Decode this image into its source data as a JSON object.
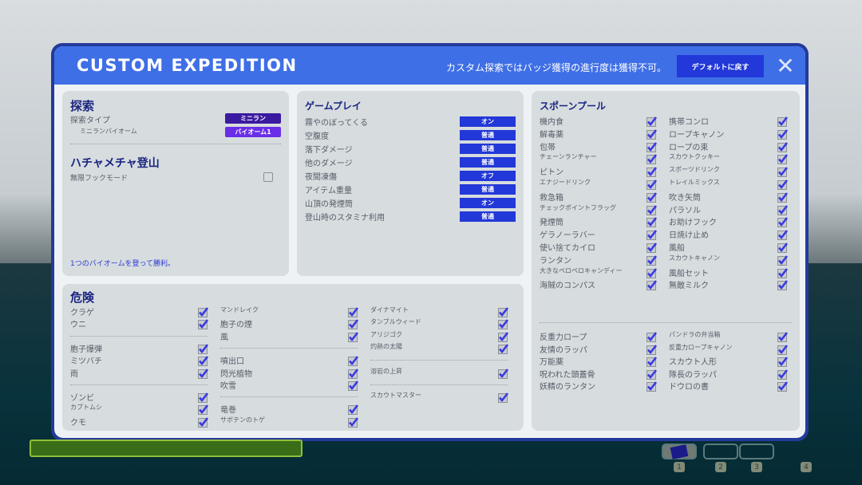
{
  "header": {
    "title": "CUSTOM EXPEDITION",
    "notice": "カスタム探索ではバッジ獲得の進行度は獲得不可。",
    "default_button": "デフォルトに戻す",
    "close_icon": "close-icon"
  },
  "colors": {
    "header": "#3f6fe6",
    "button": "#2238d8",
    "pill_dark": "#3a1aa0",
    "pill_light": "#6a2ee8"
  },
  "exploration": {
    "title": "探索",
    "type_label": "探索タイプ",
    "type_value": "ミニラン",
    "biome_label": "ミニランバイオーム",
    "biome_value": "バイオーム1",
    "chaos_title": "ハチャメチャ登山",
    "infinite_hook_label": "無限フックモード",
    "infinite_hook_checked": false,
    "win_text": "1つのバイオームを登って勝利。"
  },
  "gameplay": {
    "title": "ゲームプレイ",
    "rows": [
      {
        "label": "霧やのぼってくる",
        "value": "オン"
      },
      {
        "label": "空腹度",
        "value": "普通"
      },
      {
        "label": "落下ダメージ",
        "value": "普通"
      },
      {
        "label": "他のダメージ",
        "value": "普通"
      },
      {
        "label": "夜間凍傷",
        "value": "オフ"
      },
      {
        "label": "アイテム重量",
        "value": "普通"
      },
      {
        "label": "山頂の発煙筒",
        "value": "オン"
      },
      {
        "label": "登山時のスタミナ利用",
        "value": "普通"
      }
    ]
  },
  "spawn_pool": {
    "title": "スポーンプール",
    "col1": [
      "機内食",
      "解毒薬",
      "包帯",
      "チェーンランチャー",
      "ピトン",
      "エナジードリンク",
      "救急箱",
      "チェックポイントフラッグ",
      "発煙筒",
      "ゲラノーラバー",
      "使い捨てカイロ",
      "ランタン",
      "大きなペロペロキャンディー",
      "海賊のコンパス"
    ],
    "col2": [
      "携帯コンロ",
      "ロープキャノン",
      "ロープの束",
      "スカウトクッキー",
      "スポーツドリンク",
      "トレイルミックス",
      "吹き矢筒",
      "パラソル",
      "お助けフック",
      "日焼け止め",
      "風船",
      "スカウトキャノン",
      "風船セット",
      "無敵ミルク"
    ],
    "col3": [
      "反重力ロープ",
      "友情のラッパ",
      "万能薬",
      "呪われた頭蓋骨",
      "妖精のランタン"
    ],
    "col4": [
      "パンドラの弁当箱",
      "反重力ロープキャノン",
      "スカウト人形",
      "隊長のラッパ",
      "ドウロの書"
    ]
  },
  "hazards": {
    "title": "危険",
    "columns": [
      [
        "クラゲ",
        "ウニ",
        "-",
        "胞子爆弾",
        "ミツバチ",
        "雨",
        "-",
        "ゾンビ",
        "カブトムシ",
        "クモ"
      ],
      [
        "マンドレイク",
        "胞子の煙",
        "風",
        "-",
        "噴出口",
        "閃光植物",
        "吹雪",
        "-",
        "竜巻",
        "サボテンのトゲ"
      ],
      [
        "ダイナマイト",
        "タンブルウィード",
        "アリジゴク",
        "灼熱の太陽",
        "-",
        "溶岩の上昇",
        "-",
        "スカウトマスター"
      ]
    ]
  },
  "hotbar": {
    "slots": [
      "1",
      "2",
      "3",
      "4"
    ]
  }
}
